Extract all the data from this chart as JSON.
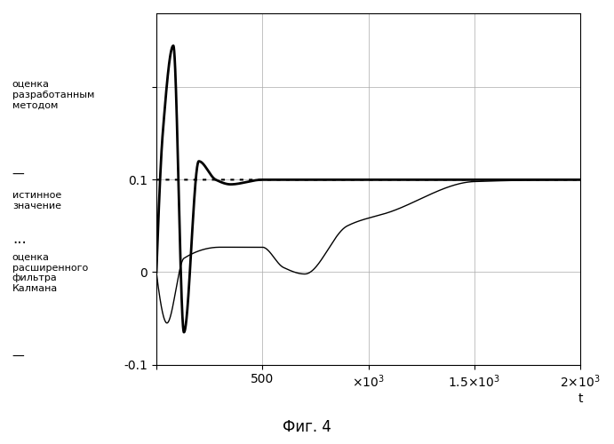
{
  "title": "",
  "xlabel": "t",
  "ylabel": "",
  "xlim": [
    0,
    2000
  ],
  "ylim": [
    -0.1,
    0.28
  ],
  "grid": true,
  "caption": "Фиг. 4",
  "legend": {
    "label1": "оценка\nразработанным\nметодом",
    "label2": "истинное\nзначение",
    "label3": "оценка\nрасширенного\nфильтра\nКалмана"
  },
  "true_value": 0.1,
  "background_color": "#ffffff",
  "line_color": "#000000"
}
